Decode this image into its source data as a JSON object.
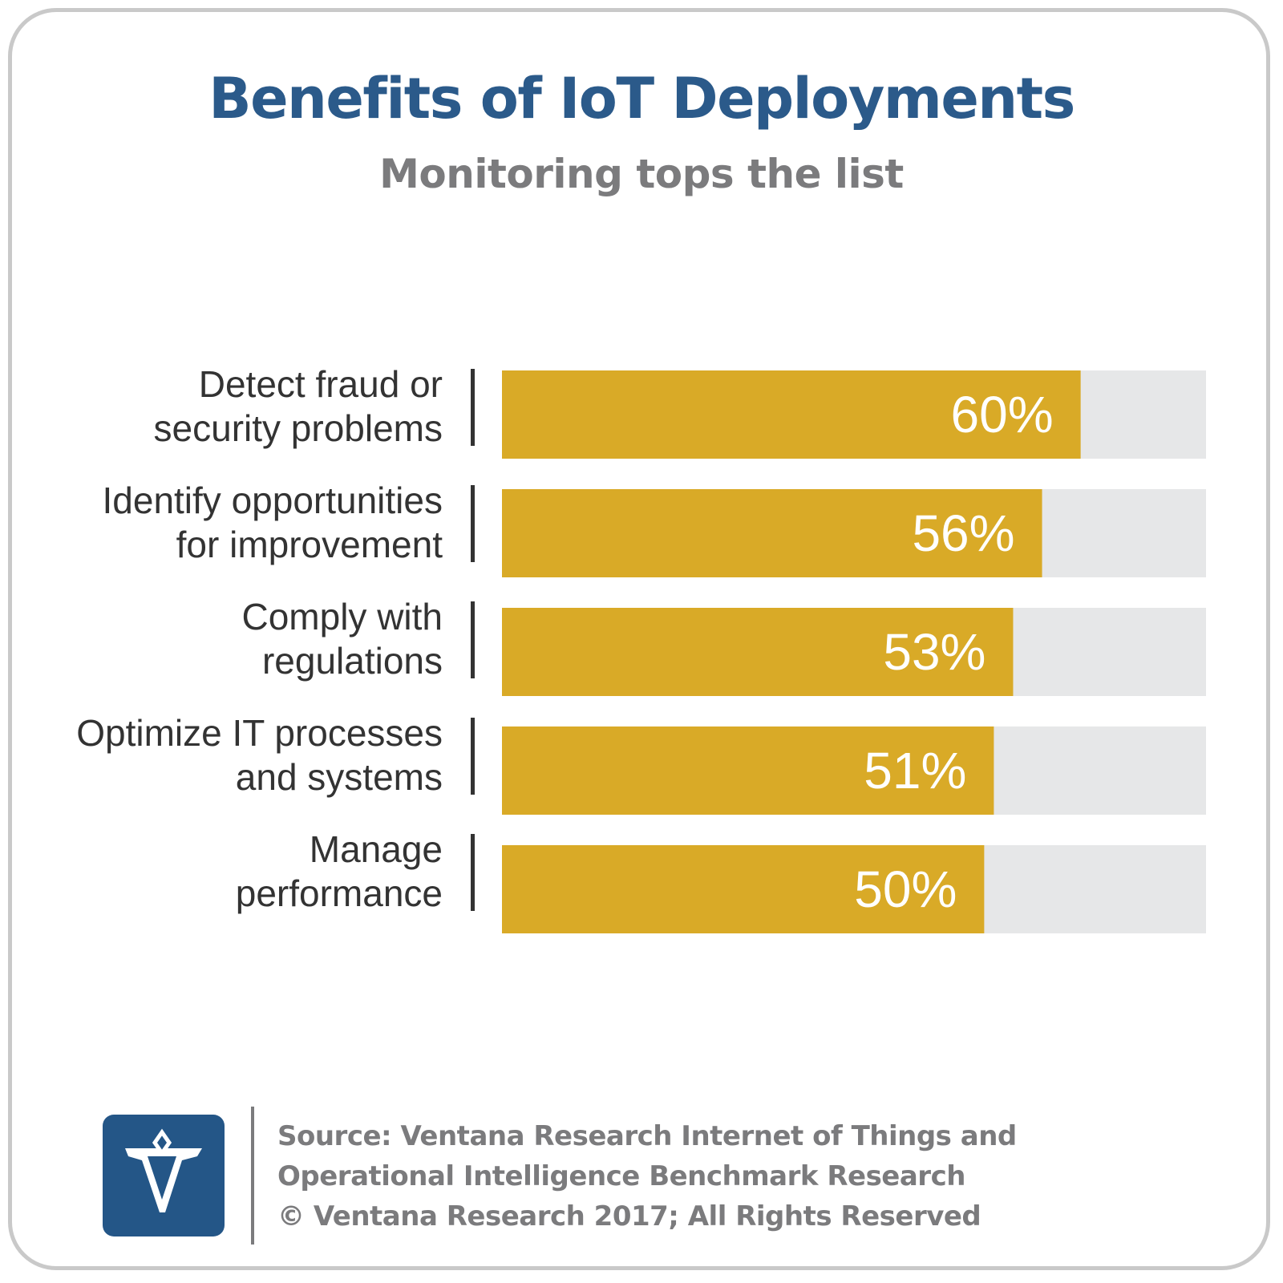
{
  "title": "Benefits of IoT Deployments",
  "subtitle": "Monitoring tops the list",
  "colors": {
    "title": "#2b5a8a",
    "subtitle": "#7b7b7d",
    "bar_fill": "#d9aa27",
    "bar_track": "#e6e7e8",
    "bar_value_text": "#ffffff",
    "label_text": "#333333",
    "logo_bg": "#245687"
  },
  "chart_data": {
    "type": "bar",
    "orientation": "horizontal",
    "categories": [
      [
        "Detect fraud or",
        "security problems"
      ],
      [
        "Identify opportunities",
        "for improvement"
      ],
      [
        "Comply with",
        "regulations"
      ],
      [
        "Optimize IT processes",
        "and systems"
      ],
      [
        "Manage",
        "performance"
      ]
    ],
    "values": [
      60,
      56,
      53,
      51,
      50
    ],
    "value_labels": [
      "60%",
      "56%",
      "53%",
      "51%",
      "50%"
    ],
    "xlim": [
      0,
      73
    ],
    "grid": false,
    "legend": "none"
  },
  "footer": {
    "source_lines": [
      "Source: Ventana Research Internet of Things and",
      "Operational Intelligence Benchmark Research",
      "© Ventana Research 2017; All Rights Reserved"
    ],
    "logo_icon": "ventana-v-logo-icon"
  }
}
